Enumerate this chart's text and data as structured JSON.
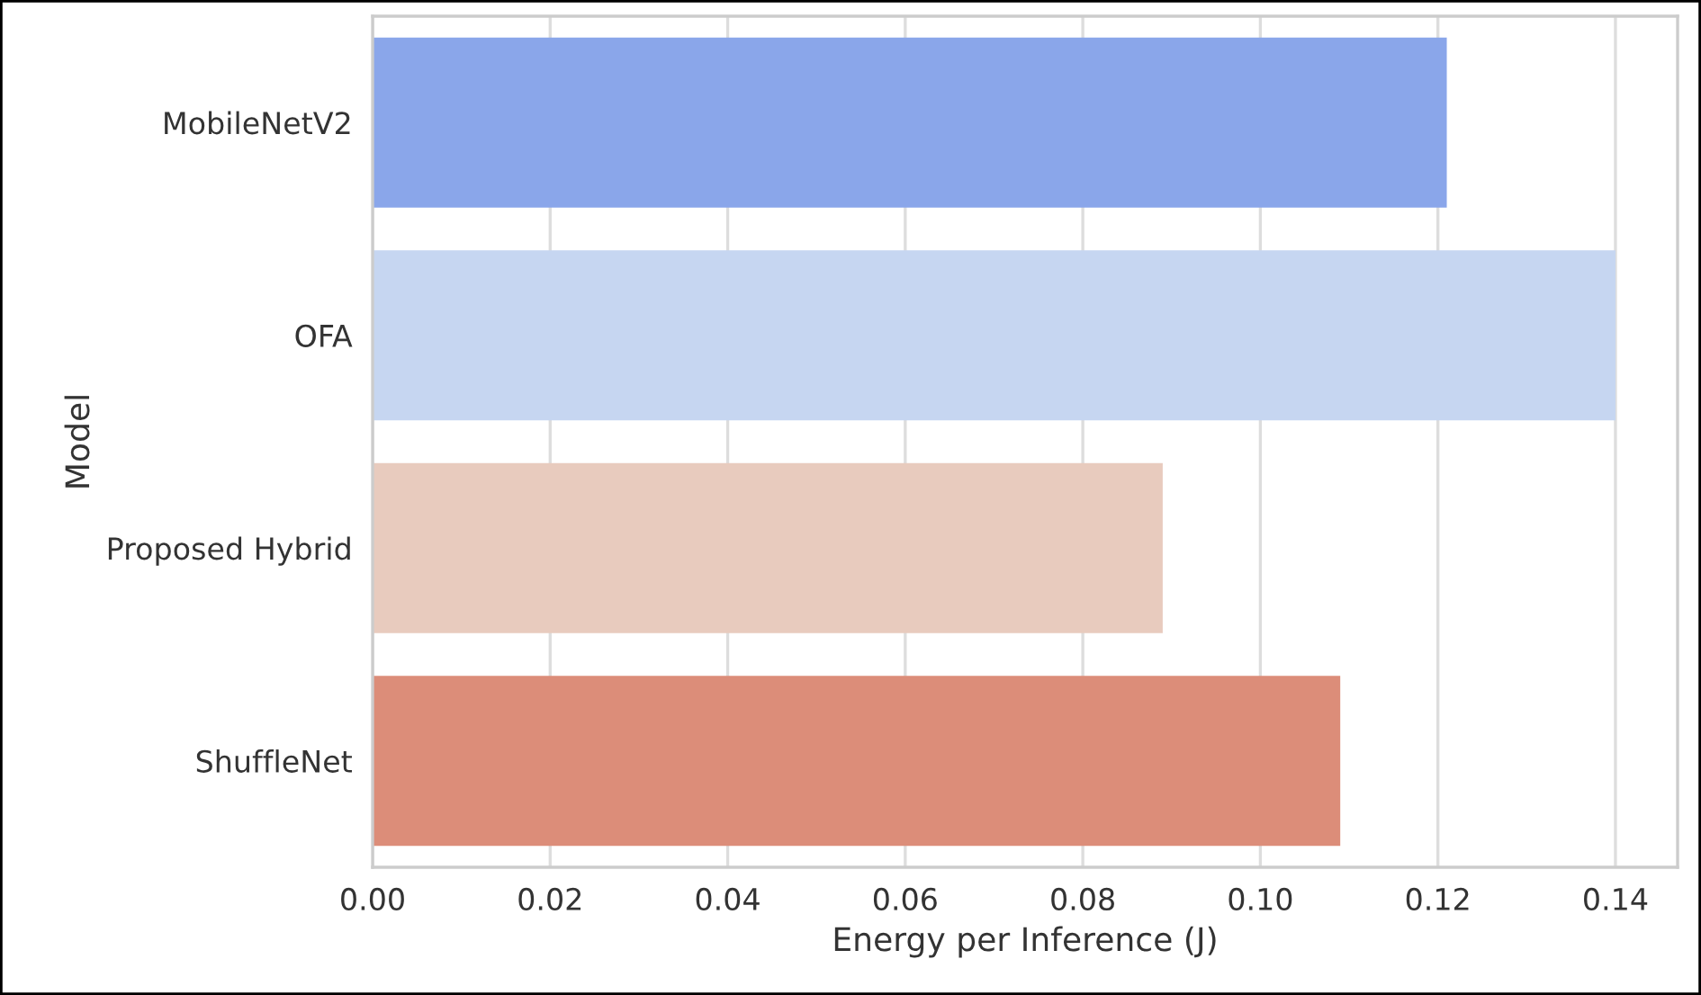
{
  "chart_data": {
    "type": "bar",
    "orientation": "horizontal",
    "xlabel": "Energy per Inference (J)",
    "ylabel": "Model",
    "categories": [
      "MobileNetV2",
      "OFA",
      "Proposed Hybrid",
      "ShuffleNet"
    ],
    "values": [
      0.121,
      0.14,
      0.089,
      0.109
    ],
    "colors": [
      "#8aa6ea",
      "#c6d6f1",
      "#e8cbbe",
      "#dc8d79"
    ],
    "xlim": [
      0,
      0.147
    ],
    "xticks": [
      {
        "value": 0,
        "label": "0.00"
      },
      {
        "value": 0.02,
        "label": "0.02"
      },
      {
        "value": 0.04,
        "label": "0.04"
      },
      {
        "value": 0.06,
        "label": "0.06"
      },
      {
        "value": 0.08,
        "label": "0.08"
      },
      {
        "value": 0.1,
        "label": "0.10"
      },
      {
        "value": 0.12,
        "label": "0.12"
      },
      {
        "value": 0.14,
        "label": "0.14"
      }
    ],
    "grid": "x"
  }
}
